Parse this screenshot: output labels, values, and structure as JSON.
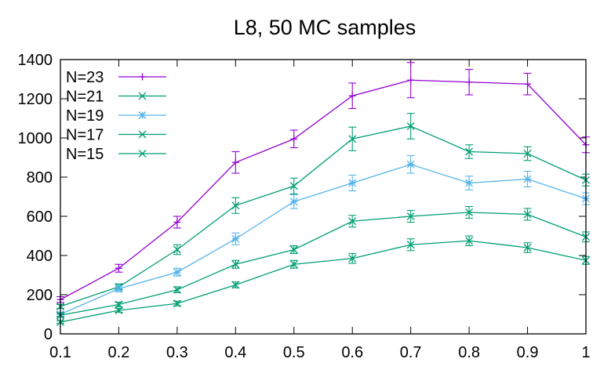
{
  "chart_data": {
    "type": "line",
    "title": "L8, 50 MC samples",
    "xlabel": "",
    "ylabel": "",
    "x": [
      0.1,
      0.2,
      0.3,
      0.4,
      0.5,
      0.6,
      0.7,
      0.8,
      0.9,
      1
    ],
    "xlim": [
      0.1,
      1
    ],
    "ylim": [
      0,
      1400
    ],
    "xticks": [
      "0.1",
      "0.2",
      "0.3",
      "0.4",
      "0.5",
      "0.6",
      "0.7",
      "0.8",
      "0.9",
      "1"
    ],
    "yticks": [
      "0",
      "200",
      "400",
      "600",
      "800",
      "1000",
      "1200",
      "1400"
    ],
    "grid": false,
    "legend_position": "top-left",
    "error_bars": true,
    "series": [
      {
        "name": "N=23",
        "color": "#9400d3",
        "marker": "plus",
        "values": [
          175,
          335,
          570,
          875,
          995,
          1215,
          1295,
          1285,
          1275,
          965
        ],
        "errors": [
          15,
          20,
          30,
          55,
          45,
          65,
          90,
          65,
          55,
          40
        ]
      },
      {
        "name": "N=21",
        "color": "#009e73",
        "marker": "cross",
        "values": [
          140,
          240,
          430,
          655,
          755,
          995,
          1060,
          930,
          920,
          785
        ],
        "errors": [
          10,
          15,
          25,
          40,
          40,
          60,
          65,
          35,
          35,
          30
        ]
      },
      {
        "name": "N=19",
        "color": "#56b4e9",
        "marker": "star",
        "values": [
          100,
          230,
          315,
          485,
          675,
          770,
          865,
          770,
          790,
          690
        ],
        "errors": [
          10,
          15,
          20,
          30,
          35,
          40,
          45,
          35,
          40,
          30
        ]
      },
      {
        "name": "N=17",
        "color": "#009e73",
        "marker": "cross",
        "values": [
          95,
          150,
          225,
          355,
          430,
          575,
          600,
          620,
          610,
          495
        ],
        "errors": [
          8,
          12,
          15,
          20,
          20,
          30,
          30,
          30,
          30,
          25
        ]
      },
      {
        "name": "N=15",
        "color": "#009e73",
        "marker": "cross",
        "values": [
          60,
          120,
          155,
          250,
          355,
          385,
          455,
          475,
          440,
          375
        ],
        "errors": [
          6,
          10,
          12,
          15,
          20,
          25,
          30,
          25,
          25,
          20
        ]
      }
    ]
  }
}
